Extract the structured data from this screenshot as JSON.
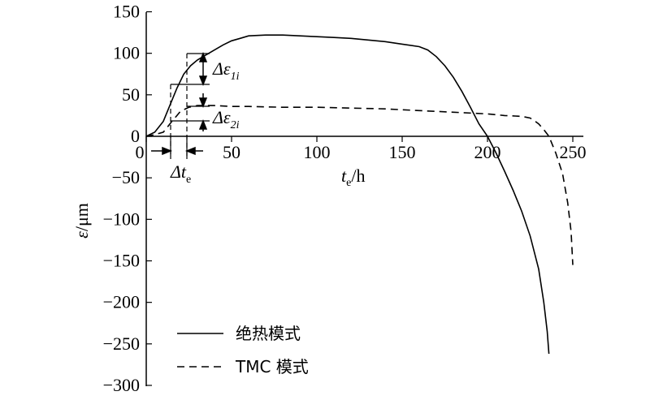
{
  "chart_data": {
    "type": "line",
    "xlabel": {
      "var": "t",
      "sub": "e",
      "unit": "/h"
    },
    "ylabel": {
      "var": "ε",
      "unit": "/μm"
    },
    "xlim": [
      0,
      250
    ],
    "ylim": [
      -300,
      150
    ],
    "xticks": [
      0,
      50,
      100,
      150,
      200,
      250
    ],
    "yticks": [
      150,
      100,
      50,
      0,
      -50,
      -100,
      -150,
      -200,
      -250,
      -300
    ],
    "grid": false,
    "legend_position": "bottom-left",
    "series": [
      {
        "name": "绝热模式",
        "style": "solid",
        "points": [
          [
            0,
            0
          ],
          [
            5,
            5
          ],
          [
            10,
            18
          ],
          [
            14,
            38
          ],
          [
            18,
            58
          ],
          [
            22,
            75
          ],
          [
            26,
            85
          ],
          [
            30,
            92
          ],
          [
            35,
            98
          ],
          [
            40,
            104
          ],
          [
            45,
            110
          ],
          [
            50,
            115
          ],
          [
            55,
            118
          ],
          [
            60,
            121
          ],
          [
            70,
            122
          ],
          [
            80,
            122
          ],
          [
            90,
            121
          ],
          [
            100,
            120
          ],
          [
            110,
            119
          ],
          [
            120,
            118
          ],
          [
            130,
            116
          ],
          [
            140,
            114
          ],
          [
            150,
            111
          ],
          [
            160,
            108
          ],
          [
            165,
            104
          ],
          [
            170,
            96
          ],
          [
            175,
            85
          ],
          [
            180,
            71
          ],
          [
            185,
            54
          ],
          [
            190,
            35
          ],
          [
            195,
            15
          ],
          [
            200,
            0
          ],
          [
            205,
            -20
          ],
          [
            210,
            -42
          ],
          [
            215,
            -65
          ],
          [
            220,
            -90
          ],
          [
            225,
            -120
          ],
          [
            230,
            -160
          ],
          [
            233,
            -200
          ],
          [
            235,
            -235
          ],
          [
            236,
            -262
          ]
        ]
      },
      {
        "name": "TMC 模式",
        "style": "dashed",
        "points": [
          [
            0,
            0
          ],
          [
            5,
            2
          ],
          [
            10,
            5
          ],
          [
            12,
            10
          ],
          [
            15,
            18
          ],
          [
            18,
            25
          ],
          [
            20,
            30
          ],
          [
            25,
            35
          ],
          [
            30,
            37
          ],
          [
            40,
            37
          ],
          [
            50,
            36
          ],
          [
            60,
            36
          ],
          [
            80,
            35
          ],
          [
            100,
            35
          ],
          [
            120,
            34
          ],
          [
            140,
            33
          ],
          [
            160,
            31
          ],
          [
            180,
            29
          ],
          [
            200,
            27
          ],
          [
            210,
            25
          ],
          [
            220,
            24
          ],
          [
            225,
            22
          ],
          [
            228,
            18
          ],
          [
            230,
            15
          ],
          [
            233,
            8
          ],
          [
            236,
            0
          ],
          [
            240,
            -20
          ],
          [
            244,
            -45
          ],
          [
            247,
            -80
          ],
          [
            249,
            -115
          ],
          [
            250,
            -155
          ]
        ]
      }
    ],
    "annotations": {
      "delta_eps_1": {
        "symbol": "Δε",
        "sub": "1i"
      },
      "delta_eps_2": {
        "symbol": "Δε",
        "sub": "2i"
      },
      "delta_t": {
        "symbol": "Δt",
        "sub": "e"
      }
    }
  }
}
